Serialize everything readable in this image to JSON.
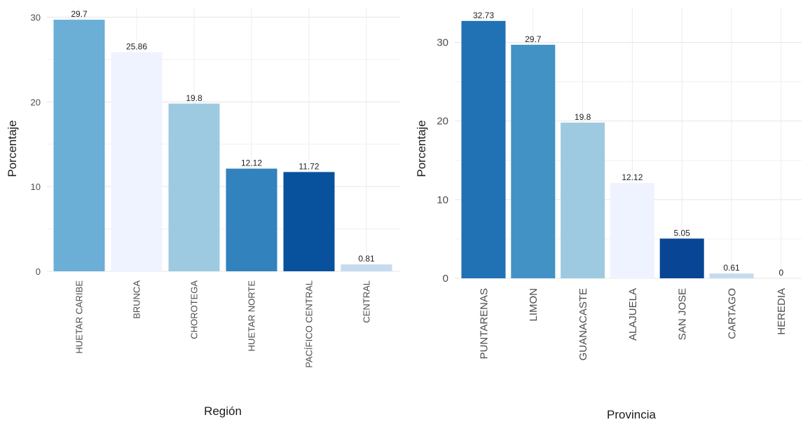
{
  "chart_data": [
    {
      "type": "bar",
      "xlabel": "Región",
      "ylabel": "Porcentaje",
      "categories": [
        "HUETAR CARIBE",
        "BRUNCA",
        "CHOROTEGA",
        "HUETAR NORTE",
        "PACÍFICO CENTRAL",
        "CENTRAL"
      ],
      "values": [
        29.7,
        25.86,
        19.8,
        12.12,
        11.72,
        0.81
      ],
      "value_labels": [
        "29.7",
        "25.86",
        "19.8",
        "12.12",
        "11.72",
        "0.81"
      ],
      "bar_colors": [
        "#6baed6",
        "#eff3ff",
        "#9ecae1",
        "#3182bd",
        "#08519c",
        "#c6dbef"
      ],
      "y_ticks": [
        0,
        10,
        20,
        30
      ],
      "y_tick_labels": [
        "0",
        "10",
        "20",
        "30"
      ],
      "ylim": [
        0,
        31.2
      ],
      "grid": true,
      "legend": "none"
    },
    {
      "type": "bar",
      "xlabel": "Provincia",
      "ylabel": "Porcentaje",
      "categories": [
        "PUNTARENAS",
        "LIMON",
        "GUANACASTE",
        "ALAJUELA",
        "SAN JOSE",
        "CARTAGO",
        "HEREDIA"
      ],
      "values": [
        32.73,
        29.7,
        19.8,
        12.12,
        5.05,
        0.61,
        0
      ],
      "value_labels": [
        "32.73",
        "29.7",
        "19.8",
        "12.12",
        "5.05",
        "0.61",
        "0"
      ],
      "bar_colors": [
        "#2171b5",
        "#4292c6",
        "#9ecae1",
        "#eff3ff",
        "#084594",
        "#c6dbef",
        "#f7fbff"
      ],
      "y_ticks": [
        0,
        10,
        20,
        30
      ],
      "y_tick_labels": [
        "0",
        "10",
        "20",
        "30"
      ],
      "ylim": [
        0,
        34.5
      ],
      "grid": true,
      "legend": "none"
    }
  ]
}
